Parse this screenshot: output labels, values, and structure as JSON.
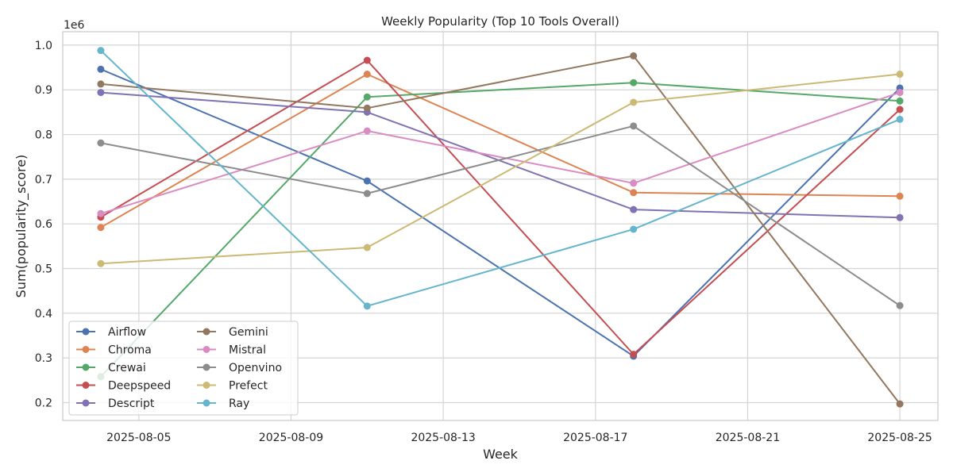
{
  "chart_data": {
    "type": "line",
    "title": "Weekly Popularity (Top 10 Tools Overall)",
    "xlabel": "Week",
    "ylabel": "Sum(popularity_score)",
    "y_offset_label": "1e6",
    "x": [
      "2025-08-04",
      "2025-08-11",
      "2025-08-18",
      "2025-08-25"
    ],
    "x_ticks": [
      "2025-08-05",
      "2025-08-09",
      "2025-08-13",
      "2025-08-17",
      "2025-08-21",
      "2025-08-25"
    ],
    "xlim": [
      "2025-08-03",
      "2025-08-26"
    ],
    "y_ticks": [
      "0.2",
      "0.3",
      "0.4",
      "0.5",
      "0.6",
      "0.7",
      "0.8",
      "0.9",
      "1.0"
    ],
    "ylim": [
      0.16,
      1.03
    ],
    "grid": true,
    "legend_position": "lower-left",
    "legend_columns": 2,
    "series": [
      {
        "name": "Airflow",
        "color": "#4c72b0",
        "values": [
          0.946,
          0.696,
          0.304,
          0.904
        ]
      },
      {
        "name": "Chroma",
        "color": "#dd8452",
        "values": [
          0.592,
          0.935,
          0.67,
          0.662
        ]
      },
      {
        "name": "Crewai",
        "color": "#55a868",
        "values": [
          0.258,
          0.884,
          0.916,
          0.875
        ]
      },
      {
        "name": "Deepspeed",
        "color": "#c44e52",
        "values": [
          0.615,
          0.966,
          0.308,
          0.856
        ]
      },
      {
        "name": "Descript",
        "color": "#8172b3",
        "values": [
          0.894,
          0.85,
          0.632,
          0.614
        ]
      },
      {
        "name": "Gemini",
        "color": "#937860",
        "values": [
          0.913,
          0.859,
          0.976,
          0.197
        ]
      },
      {
        "name": "Mistral",
        "color": "#da8bc3",
        "values": [
          0.623,
          0.808,
          0.691,
          0.894
        ]
      },
      {
        "name": "Openvino",
        "color": "#8c8c8c",
        "values": [
          0.781,
          0.668,
          0.819,
          0.417
        ]
      },
      {
        "name": "Prefect",
        "color": "#ccb974",
        "values": [
          0.511,
          0.547,
          0.872,
          0.935
        ]
      },
      {
        "name": "Ray",
        "color": "#64b5cd",
        "values": [
          0.988,
          0.416,
          0.588,
          0.834
        ]
      }
    ]
  }
}
